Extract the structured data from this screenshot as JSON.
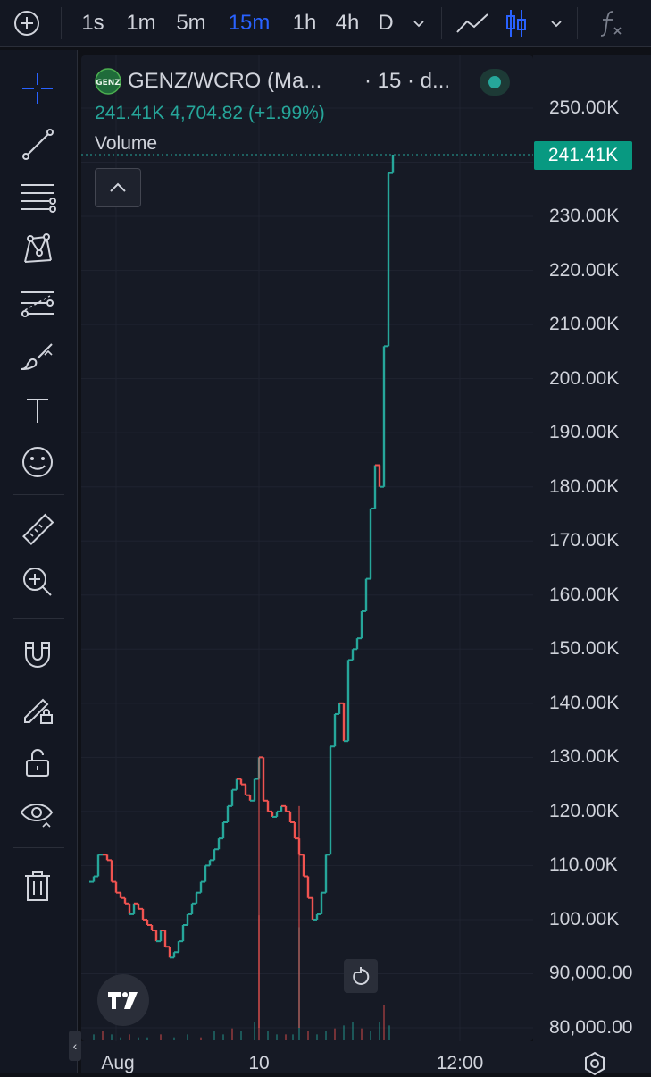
{
  "toolbar": {
    "intervals": [
      "1s",
      "1m",
      "5m",
      "15m",
      "1h",
      "4h",
      "D"
    ],
    "active_interval": "15m",
    "icons": [
      "add-symbol-icon",
      "chevron-down-icon",
      "line-chart-icon",
      "candles-icon",
      "indicators-icon"
    ]
  },
  "left_tools": [
    "crosshair-icon",
    "trendline-icon",
    "fib-icon",
    "pattern-icon",
    "projection-icon",
    "brush-icon",
    "text-icon",
    "emoji-icon",
    "ruler-icon",
    "zoom-in-icon",
    "magnet-icon",
    "lock-drawing-icon",
    "unlock-icon",
    "eye-icon",
    "trash-icon"
  ],
  "legend": {
    "title": "GENZ/WCRO (Ma...",
    "interval": "· 15 · d...",
    "last_price": "241.41K",
    "change": "4,704.82",
    "change_pct": "(+1.99%)",
    "volume_label": "Volume",
    "logo_text": "GENZ"
  },
  "price_badge": "241.41K",
  "colors": {
    "up": "#26a69a",
    "down": "#ef5350",
    "accent": "#2962ff",
    "background": "#161a25"
  },
  "chart_data": {
    "type": "candlestick",
    "symbol": "GENZ/WCRO",
    "y_ticks": [
      "250.00K",
      "240.00K",
      "230.00K",
      "220.00K",
      "210.00K",
      "200.00K",
      "190.00K",
      "180.00K",
      "170.00K",
      "160.00K",
      "150.00K",
      "140.00K",
      "130.00K",
      "120.00K",
      "110.00K",
      "100.00K",
      "90,000.00",
      "80,000.00"
    ],
    "y_tick_values": [
      250000,
      240000,
      230000,
      220000,
      210000,
      200000,
      190000,
      180000,
      170000,
      160000,
      150000,
      140000,
      130000,
      120000,
      110000,
      100000,
      90000,
      80000
    ],
    "ylim": [
      79000,
      254000
    ],
    "x_ticks": [
      "Aug",
      "10",
      "12:00"
    ],
    "last_price": 241410,
    "close_path": [
      [
        0,
        107000
      ],
      [
        5,
        108000
      ],
      [
        10,
        112000
      ],
      [
        15,
        112000
      ],
      [
        20,
        111000
      ],
      [
        25,
        107000
      ],
      [
        30,
        105000
      ],
      [
        35,
        104000
      ],
      [
        40,
        103000
      ],
      [
        45,
        101000
      ],
      [
        50,
        103000
      ],
      [
        55,
        102000
      ],
      [
        60,
        100000
      ],
      [
        65,
        99000
      ],
      [
        70,
        98000
      ],
      [
        75,
        96000
      ],
      [
        80,
        98000
      ],
      [
        85,
        95000
      ],
      [
        90,
        93000
      ],
      [
        95,
        94000
      ],
      [
        100,
        96000
      ],
      [
        105,
        99000
      ],
      [
        110,
        101000
      ],
      [
        115,
        103000
      ],
      [
        120,
        105000
      ],
      [
        125,
        107000
      ],
      [
        130,
        110000
      ],
      [
        135,
        111000
      ],
      [
        140,
        113000
      ],
      [
        145,
        115000
      ],
      [
        150,
        118000
      ],
      [
        155,
        121000
      ],
      [
        160,
        124000
      ],
      [
        165,
        126000
      ],
      [
        170,
        125000
      ],
      [
        175,
        123000
      ],
      [
        180,
        122000
      ],
      [
        185,
        126000
      ],
      [
        190,
        130000
      ],
      [
        195,
        122000
      ],
      [
        200,
        120000
      ],
      [
        205,
        119000
      ],
      [
        210,
        120000
      ],
      [
        215,
        121000
      ],
      [
        220,
        120000
      ],
      [
        225,
        118000
      ],
      [
        230,
        115000
      ],
      [
        235,
        112000
      ],
      [
        240,
        108000
      ],
      [
        245,
        104000
      ],
      [
        250,
        100000
      ],
      [
        255,
        101000
      ],
      [
        260,
        105000
      ],
      [
        265,
        112000
      ],
      [
        270,
        132000
      ],
      [
        275,
        138000
      ],
      [
        280,
        140000
      ],
      [
        285,
        133000
      ],
      [
        290,
        148000
      ],
      [
        295,
        150000
      ],
      [
        300,
        152000
      ],
      [
        305,
        157000
      ],
      [
        310,
        163000
      ],
      [
        315,
        176000
      ],
      [
        320,
        184000
      ],
      [
        325,
        180000
      ],
      [
        330,
        206000
      ],
      [
        335,
        238000
      ],
      [
        340,
        241410
      ]
    ],
    "volume": [
      [
        5,
        2
      ],
      [
        15,
        3
      ],
      [
        25,
        2
      ],
      [
        35,
        1
      ],
      [
        45,
        2
      ],
      [
        55,
        1
      ],
      [
        65,
        1
      ],
      [
        80,
        2
      ],
      [
        95,
        1
      ],
      [
        110,
        2
      ],
      [
        125,
        1
      ],
      [
        140,
        3
      ],
      [
        150,
        2
      ],
      [
        160,
        4
      ],
      [
        170,
        3
      ],
      [
        185,
        6
      ],
      [
        190,
        42
      ],
      [
        200,
        3
      ],
      [
        210,
        2
      ],
      [
        220,
        2
      ],
      [
        228,
        2
      ],
      [
        235,
        38
      ],
      [
        245,
        3
      ],
      [
        255,
        2
      ],
      [
        265,
        3
      ],
      [
        275,
        4
      ],
      [
        285,
        5
      ],
      [
        295,
        6
      ],
      [
        305,
        4
      ],
      [
        315,
        3
      ],
      [
        325,
        6
      ],
      [
        330,
        12
      ],
      [
        336,
        5
      ]
    ]
  }
}
